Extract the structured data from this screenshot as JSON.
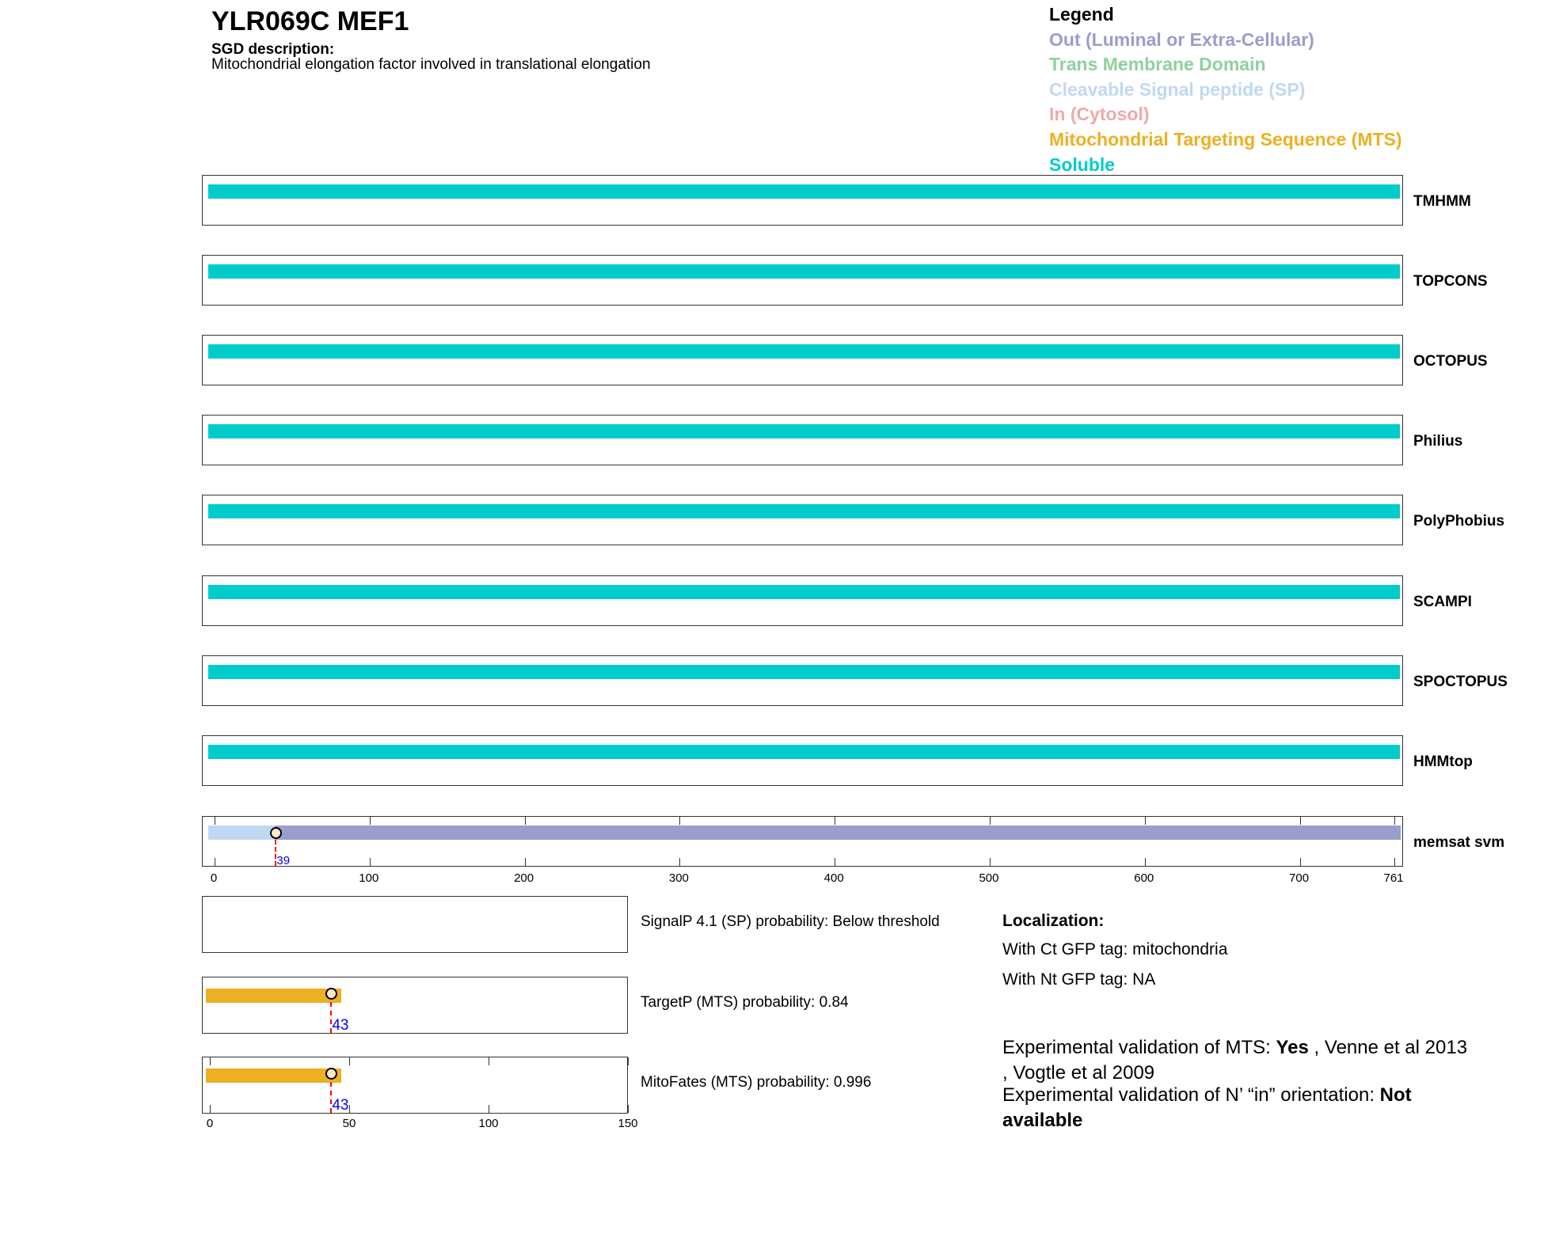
{
  "header": {
    "title": "YLR069C  MEF1",
    "sgd_heading": "SGD description:",
    "sgd_text": "Mitochondrial elongation factor involved in translational elongation"
  },
  "legend": {
    "title": "Legend",
    "items": [
      {
        "label": "Out (Luminal or Extra-Cellular)",
        "color": "#9b9dcc"
      },
      {
        "label": "Trans Membrane Domain",
        "color": "#8fd19e"
      },
      {
        "label": "Cleavable Signal peptide (SP)",
        "color": "#c0d8f3"
      },
      {
        "label": "In (Cytosol)",
        "color": "#eeaaaa"
      },
      {
        "label": "Mitochondrial Targeting Sequence (MTS)",
        "color": "#edb022"
      },
      {
        "label": "Soluble",
        "color": "#00cccc"
      }
    ]
  },
  "tracks": [
    {
      "name": "TMHMM",
      "class": "Soluble"
    },
    {
      "name": "TOPCONS",
      "class": "Soluble"
    },
    {
      "name": "OCTOPUS",
      "class": "Soluble"
    },
    {
      "name": "Philius",
      "class": "Soluble"
    },
    {
      "name": "PolyPhobius",
      "class": "Soluble"
    },
    {
      "name": "SCAMPI",
      "class": "Soluble"
    },
    {
      "name": "SPOCTOPUS",
      "class": "Soluble"
    },
    {
      "name": "HMMtop",
      "class": "Soluble"
    }
  ],
  "memsat": {
    "name": "memsat svm",
    "length": 761,
    "segments": [
      {
        "start": 0,
        "end": 39,
        "color": "#c0d8f3"
      },
      {
        "start": 39,
        "end": 761,
        "color": "#9b9dcc"
      }
    ],
    "marker": 39,
    "marker_label": "39",
    "ticks": [
      "0",
      "100",
      "200",
      "300",
      "400",
      "500",
      "600",
      "700",
      "761"
    ]
  },
  "predictors": [
    {
      "label": "SignalP 4.1 (SP) probability: Below threshold"
    },
    {
      "label": "TargetP (MTS) probability: 0.84",
      "bar_end": 47,
      "marker": 43,
      "marker_label": "43"
    },
    {
      "label": "MitoFates (MTS) probability: 0.996",
      "bar_end": 47,
      "marker": 43,
      "marker_label": "43"
    }
  ],
  "pred_axis": {
    "max": 150,
    "ticks": [
      "0",
      "50",
      "100",
      "150"
    ]
  },
  "localization": {
    "heading": "Localization:",
    "ct": "With Ct GFP tag: mitochondria",
    "nt": "With Nt GFP tag: NA"
  },
  "experimental": {
    "mts_prefix": "Experimental validation of MTS: ",
    "mts_value": "Yes",
    "mts_refs1": " , Venne et al 2013",
    "mts_refs2": ", Vogtle et al 2009",
    "orient_prefix": "Experimental validation of N’ “in” orientation: ",
    "orient_value1": "Not",
    "orient_value2": "available"
  }
}
